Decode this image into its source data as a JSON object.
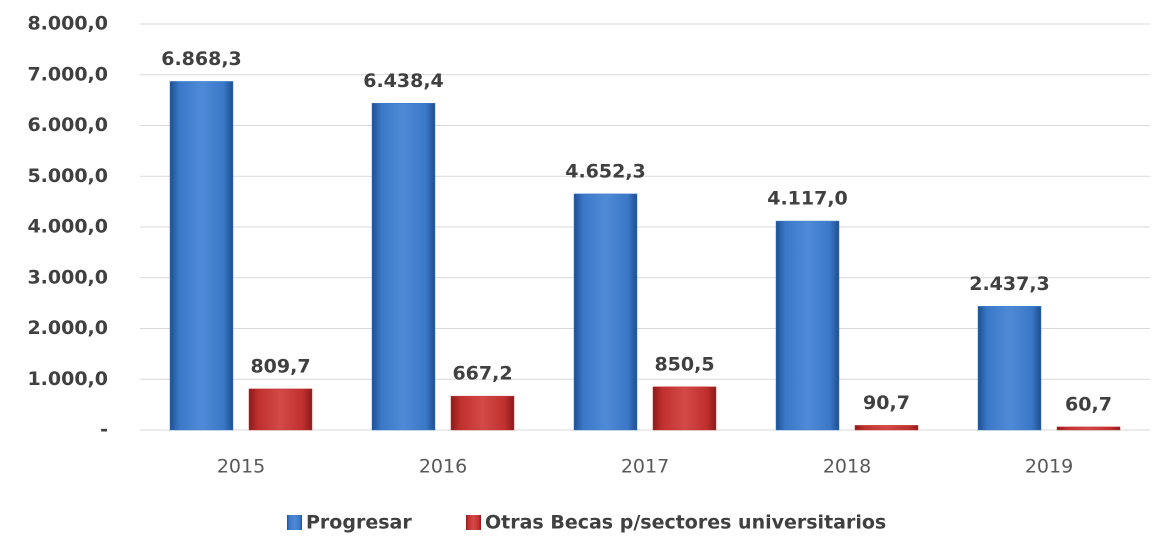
{
  "chart_data": {
    "type": "bar",
    "categories": [
      "2015",
      "2016",
      "2017",
      "2018",
      "2019"
    ],
    "series": [
      {
        "name": "Progresar",
        "color": "#3a78c8",
        "values": [
          6868.3,
          6438.4,
          4652.3,
          4117.0,
          2437.3
        ],
        "value_labels": [
          "6.868,3",
          "6.438,4",
          "4.652,3",
          "4.117,0",
          "2.437,3"
        ]
      },
      {
        "name": "Otras Becas p/sectores universitarios",
        "color": "#c0302e",
        "values": [
          809.7,
          667.2,
          850.5,
          90.7,
          60.7
        ],
        "value_labels": [
          "809,7",
          "667,2",
          "850,5",
          "90,7",
          "60,7"
        ]
      }
    ],
    "ylim": [
      0,
      8000
    ],
    "yticks": [
      {
        "value": 0,
        "label": "-"
      },
      {
        "value": 1000,
        "label": "1.000,0"
      },
      {
        "value": 2000,
        "label": "2.000,0"
      },
      {
        "value": 3000,
        "label": "3.000,0"
      },
      {
        "value": 4000,
        "label": "4.000,0"
      },
      {
        "value": 5000,
        "label": "5.000,0"
      },
      {
        "value": 6000,
        "label": "6.000,0"
      },
      {
        "value": 7000,
        "label": "7.000,0"
      },
      {
        "value": 8000,
        "label": "8.000,0"
      }
    ],
    "grid": true,
    "legend": "bottom"
  }
}
